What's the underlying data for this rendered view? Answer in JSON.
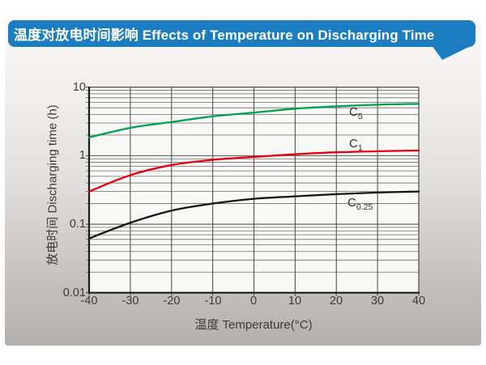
{
  "header": {
    "title": "温度对放电时间影响 Effects of Temperature on Discharging Time",
    "bg_color": "#1b7dc0",
    "text_color": "#ffffff"
  },
  "chart_data": {
    "type": "line",
    "title": "温度对放电时间影响 Effects of Temperature on Discharging Time",
    "xlabel": "温度 Temperature(°C)",
    "ylabel": "放电时间 Discharging time (h)",
    "xlim": [
      -40,
      40
    ],
    "ylim": [
      0.01,
      10
    ],
    "yscale": "log",
    "grid": "major and log-minor horizontal lines, major vertical lines",
    "legend_position": "inline labels at right of curves",
    "x": [
      -40,
      -30,
      -20,
      -10,
      0,
      10,
      20,
      30,
      40
    ],
    "xticks": [
      "-40",
      "-30",
      "-20",
      "-10",
      "0",
      "10",
      "20",
      "30",
      "40"
    ],
    "yticks": [
      "10",
      "1",
      "0.1",
      "0.01"
    ],
    "series": [
      {
        "name": "C5",
        "label_base": "C",
        "label_sub": "5",
        "color": "#00a24e",
        "values": [
          1.85,
          2.55,
          3.1,
          3.75,
          4.25,
          4.85,
          5.25,
          5.55,
          5.7
        ]
      },
      {
        "name": "C1",
        "label_base": "C",
        "label_sub": "1",
        "color": "#e8000e",
        "values": [
          0.3,
          0.52,
          0.73,
          0.87,
          0.96,
          1.05,
          1.12,
          1.16,
          1.19
        ]
      },
      {
        "name": "C0.25",
        "label_base": "C",
        "label_sub": "0.25",
        "color": "#161616",
        "values": [
          0.062,
          0.105,
          0.158,
          0.2,
          0.235,
          0.255,
          0.275,
          0.29,
          0.3
        ]
      }
    ],
    "plot_colors": {
      "plot_bg": "#f8f8f6",
      "grid_minor": "#6e6b68",
      "grid_major": "#55524f",
      "axis": "#1a1a1a",
      "tick_text": "#3b3b3b"
    }
  }
}
